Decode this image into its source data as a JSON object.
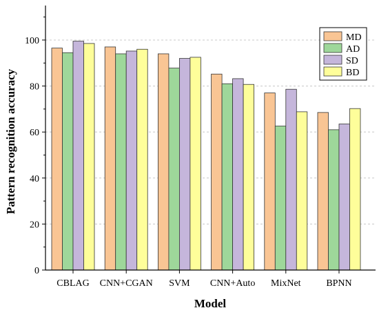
{
  "chart_data": {
    "type": "bar",
    "title": "",
    "xlabel": "Model",
    "ylabel": "Pattern recognition accuracy",
    "categories": [
      "CBLAG",
      "CNN+CGAN",
      "SVM",
      "CNN+Auto",
      "MixNet",
      "BPNN"
    ],
    "ylim": [
      0,
      115
    ],
    "yticks": [
      0,
      20,
      40,
      60,
      80,
      100
    ],
    "grid": "horizontal-dashed",
    "legend_position": "top-right",
    "series": [
      {
        "name": "MD",
        "color": "#F9C594",
        "values": [
          96.5,
          97.0,
          94.0,
          85.2,
          77.0,
          68.5
        ]
      },
      {
        "name": "AD",
        "color": "#9ED79A",
        "values": [
          94.5,
          94.0,
          87.8,
          81.0,
          62.6,
          61.0
        ]
      },
      {
        "name": "SD",
        "color": "#C5B6DB",
        "values": [
          99.5,
          95.2,
          92.0,
          83.2,
          78.6,
          63.5
        ]
      },
      {
        "name": "BD",
        "color": "#FEFE9A",
        "values": [
          98.5,
          96.0,
          92.5,
          80.7,
          68.8,
          70.2
        ]
      }
    ]
  }
}
